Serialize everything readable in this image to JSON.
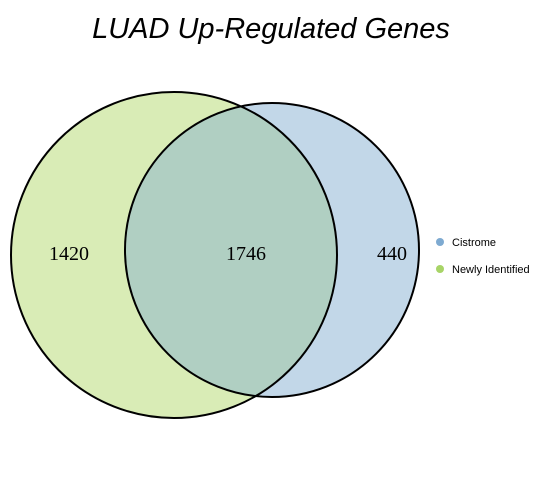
{
  "title": "LUAD Up-Regulated Genes",
  "sets": [
    {
      "name": "Cistrome",
      "color": "#7eaad1"
    },
    {
      "name": "Newly Identified",
      "color": "#a8d467"
    }
  ],
  "regions": {
    "newly_identified_only": "1420",
    "intersection": "1746",
    "cistrome_only": "440"
  },
  "colors": {
    "newly_identified_fill": "#d9ecb6",
    "cistrome_fill": "#c2d7e8",
    "intersection_fill": "#b0cfc2",
    "outline": "#000000"
  },
  "legend": {
    "position": "right",
    "items": [
      {
        "label": "Cistrome",
        "color": "#7eaad1"
      },
      {
        "label": "Newly Identified",
        "color": "#a8d467"
      }
    ]
  }
}
